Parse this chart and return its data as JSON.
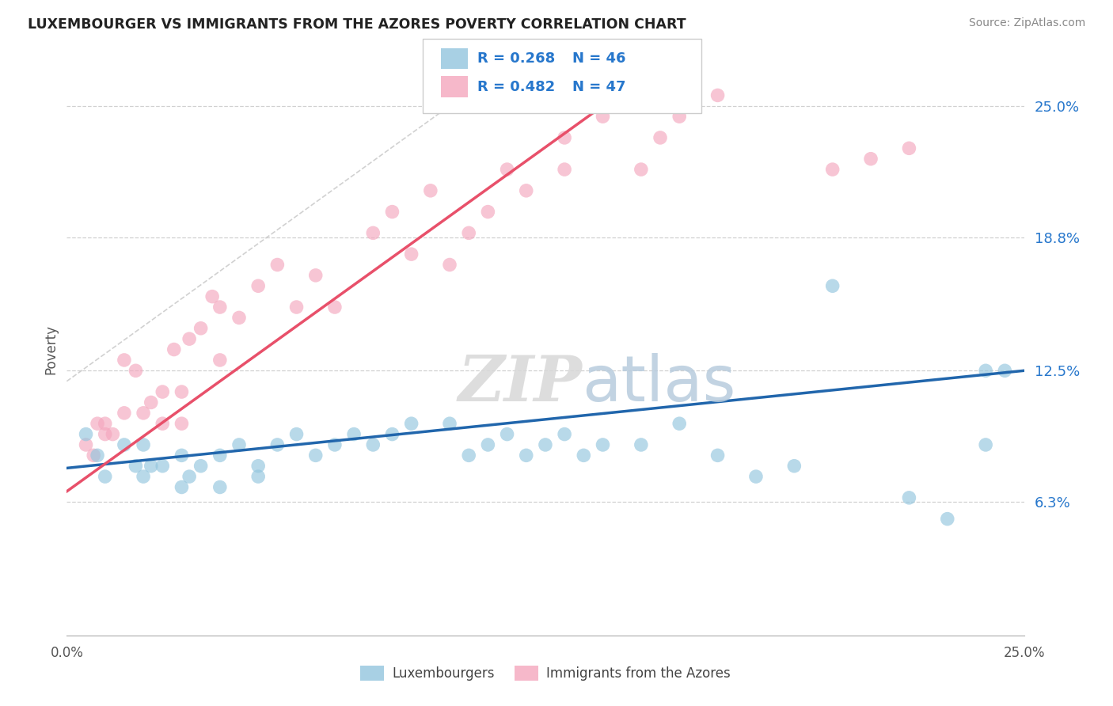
{
  "title": "LUXEMBOURGER VS IMMIGRANTS FROM THE AZORES POVERTY CORRELATION CHART",
  "source": "Source: ZipAtlas.com",
  "ylabel": "Poverty",
  "xlim": [
    0.0,
    0.25
  ],
  "ylim": [
    0.0,
    0.27
  ],
  "yticks": [
    0.063,
    0.125,
    0.188,
    0.25
  ],
  "ytick_labels": [
    "6.3%",
    "12.5%",
    "18.8%",
    "25.0%"
  ],
  "blue_color": "#92c5de",
  "pink_color": "#f4a6bd",
  "blue_line_color": "#2166ac",
  "pink_line_color": "#e8506a",
  "watermark_zip": "ZIP",
  "watermark_atlas": "atlas",
  "legend_blue_r": "R = 0.268",
  "legend_blue_n": "N = 46",
  "legend_pink_r": "R = 0.482",
  "legend_pink_n": "N = 47",
  "blue_x": [
    0.005,
    0.008,
    0.01,
    0.015,
    0.018,
    0.02,
    0.02,
    0.022,
    0.025,
    0.03,
    0.03,
    0.032,
    0.035,
    0.04,
    0.04,
    0.045,
    0.05,
    0.05,
    0.055,
    0.06,
    0.065,
    0.07,
    0.075,
    0.08,
    0.085,
    0.09,
    0.1,
    0.105,
    0.11,
    0.115,
    0.12,
    0.125,
    0.13,
    0.135,
    0.14,
    0.15,
    0.16,
    0.17,
    0.18,
    0.19,
    0.2,
    0.22,
    0.23,
    0.24,
    0.24,
    0.245
  ],
  "blue_y": [
    0.095,
    0.085,
    0.075,
    0.09,
    0.08,
    0.075,
    0.09,
    0.08,
    0.08,
    0.07,
    0.085,
    0.075,
    0.08,
    0.07,
    0.085,
    0.09,
    0.075,
    0.08,
    0.09,
    0.095,
    0.085,
    0.09,
    0.095,
    0.09,
    0.095,
    0.1,
    0.1,
    0.085,
    0.09,
    0.095,
    0.085,
    0.09,
    0.095,
    0.085,
    0.09,
    0.09,
    0.1,
    0.085,
    0.075,
    0.08,
    0.165,
    0.065,
    0.055,
    0.09,
    0.125,
    0.125
  ],
  "pink_x": [
    0.005,
    0.007,
    0.008,
    0.01,
    0.01,
    0.012,
    0.015,
    0.015,
    0.018,
    0.02,
    0.022,
    0.025,
    0.025,
    0.028,
    0.03,
    0.03,
    0.032,
    0.035,
    0.038,
    0.04,
    0.04,
    0.045,
    0.05,
    0.055,
    0.06,
    0.065,
    0.07,
    0.08,
    0.085,
    0.09,
    0.095,
    0.1,
    0.105,
    0.11,
    0.115,
    0.12,
    0.13,
    0.13,
    0.14,
    0.14,
    0.15,
    0.155,
    0.16,
    0.17,
    0.2,
    0.21,
    0.22
  ],
  "pink_y": [
    0.09,
    0.085,
    0.1,
    0.095,
    0.1,
    0.095,
    0.105,
    0.13,
    0.125,
    0.105,
    0.11,
    0.1,
    0.115,
    0.135,
    0.1,
    0.115,
    0.14,
    0.145,
    0.16,
    0.13,
    0.155,
    0.15,
    0.165,
    0.175,
    0.155,
    0.17,
    0.155,
    0.19,
    0.2,
    0.18,
    0.21,
    0.175,
    0.19,
    0.2,
    0.22,
    0.21,
    0.22,
    0.235,
    0.245,
    0.25,
    0.22,
    0.235,
    0.245,
    0.255,
    0.22,
    0.225,
    0.23
  ]
}
